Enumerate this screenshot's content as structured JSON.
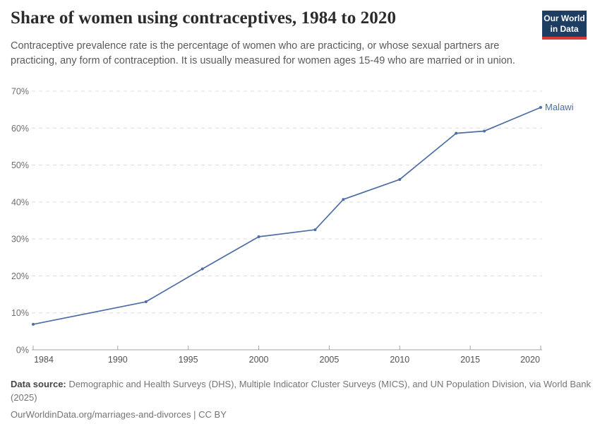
{
  "header": {
    "title": "Share of women using contraceptives, 1984 to 2020",
    "subtitle": "Contraceptive prevalence rate is the percentage of women who are practicing, or whose sexual partners are practicing, any form of contraception. It is usually measured for women ages 15-49 who are married or in union."
  },
  "logo": {
    "line1": "Our World",
    "line2": "in Data",
    "bg_color": "#1d3d63",
    "bar_color": "#d93a34"
  },
  "chart_data": {
    "type": "line",
    "title": "Share of women using contraceptives, 1984 to 2020",
    "entity_label": "Malawi",
    "x": [
      1984,
      1992,
      1996,
      2000,
      2004,
      2006,
      2010,
      2014,
      2016,
      2020
    ],
    "y": [
      6.9,
      13,
      21.9,
      30.6,
      32.5,
      40.7,
      46.1,
      58.6,
      59.2,
      65.6
    ],
    "unit": "%",
    "x_ticks": [
      1984,
      1990,
      1995,
      2000,
      2005,
      2010,
      2015,
      2020
    ],
    "y_ticks": [
      0,
      10,
      20,
      30,
      40,
      50,
      60,
      70
    ],
    "xlim": [
      1984,
      2020
    ],
    "ylim": [
      0,
      70
    ],
    "grid": "horizontal-dashed",
    "legend_position": "label-at-line-end",
    "line_color": "#4d6da5",
    "axis_color": "#a6a6a6",
    "grid_color": "#dcdcdc"
  },
  "footer": {
    "source_label": "Data source:",
    "source_text": "Demographic and Health Surveys (DHS), Multiple Indicator Cluster Surveys (MICS), and UN Population Division, via World Bank (2025)",
    "url": "OurWorldinData.org/marriages-and-divorces",
    "divider": "|",
    "license": "CC BY"
  }
}
